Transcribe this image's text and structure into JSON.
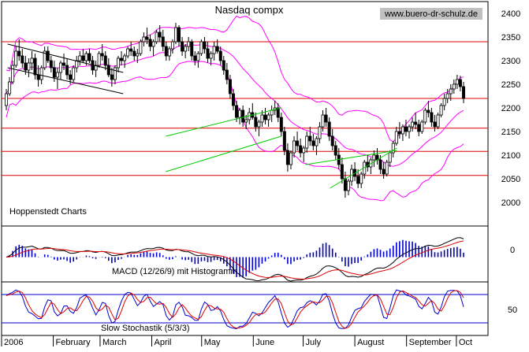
{
  "chart_data": {
    "type": "candlestick",
    "title": "Nasdaq compx",
    "source_label": "www.buero-dr-schulz.de",
    "vendor_label": "Hoppenstedt Charts",
    "colors": {
      "background": "#ffffff",
      "candle": "#000000",
      "bollinger": "#ff00ff",
      "support_lines": "#dd0000",
      "trend_channels": "#00cc00",
      "black_trendlines": "#000000",
      "macd_histogram": "#0000cc",
      "macd_line": "#000000",
      "signal_line": "#dd0000",
      "stoch_k": "#0000cc",
      "stoch_d": "#dd0000",
      "stoch_bands": "#0000cc",
      "source_bg": "#c0c0c0"
    },
    "price_panel": {
      "ylim": [
        1950,
        2425
      ],
      "yticks": [
        2000,
        2050,
        2100,
        2150,
        2200,
        2250,
        2300,
        2350,
        2400
      ],
      "support_resistance": [
        2340,
        2220,
        2157,
        2108,
        2057
      ],
      "bars": [
        [
          2205,
          2240,
          2195,
          2230
        ],
        [
          2230,
          2265,
          2225,
          2255
        ],
        [
          2255,
          2300,
          2250,
          2290
        ],
        [
          2290,
          2330,
          2285,
          2320
        ],
        [
          2320,
          2345,
          2300,
          2310
        ],
        [
          2310,
          2325,
          2285,
          2295
        ],
        [
          2295,
          2310,
          2270,
          2280
        ],
        [
          2280,
          2305,
          2265,
          2295
        ],
        [
          2295,
          2320,
          2280,
          2305
        ],
        [
          2305,
          2315,
          2260,
          2270
        ],
        [
          2270,
          2290,
          2245,
          2260
        ],
        [
          2260,
          2290,
          2250,
          2285
        ],
        [
          2285,
          2330,
          2280,
          2320
        ],
        [
          2320,
          2330,
          2295,
          2300
        ],
        [
          2300,
          2310,
          2275,
          2285
        ],
        [
          2285,
          2300,
          2255,
          2265
        ],
        [
          2265,
          2285,
          2240,
          2275
        ],
        [
          2275,
          2300,
          2260,
          2295
        ],
        [
          2295,
          2315,
          2280,
          2290
        ],
        [
          2290,
          2305,
          2260,
          2270
        ],
        [
          2270,
          2280,
          2250,
          2260
        ],
        [
          2260,
          2290,
          2255,
          2285
        ],
        [
          2285,
          2310,
          2275,
          2300
        ],
        [
          2300,
          2320,
          2290,
          2310
        ],
        [
          2310,
          2325,
          2295,
          2300
        ],
        [
          2300,
          2320,
          2290,
          2315
        ],
        [
          2315,
          2325,
          2295,
          2300
        ],
        [
          2300,
          2310,
          2270,
          2280
        ],
        [
          2280,
          2300,
          2265,
          2290
        ],
        [
          2290,
          2320,
          2285,
          2315
        ],
        [
          2315,
          2335,
          2300,
          2310
        ],
        [
          2310,
          2320,
          2280,
          2290
        ],
        [
          2290,
          2305,
          2265,
          2270
        ],
        [
          2270,
          2285,
          2245,
          2260
        ],
        [
          2260,
          2290,
          2250,
          2285
        ],
        [
          2285,
          2310,
          2275,
          2305
        ],
        [
          2305,
          2320,
          2290,
          2300
        ],
        [
          2300,
          2315,
          2285,
          2310
        ],
        [
          2310,
          2330,
          2305,
          2325
        ],
        [
          2325,
          2340,
          2310,
          2320
        ],
        [
          2320,
          2330,
          2300,
          2310
        ],
        [
          2310,
          2325,
          2295,
          2315
        ],
        [
          2315,
          2345,
          2310,
          2340
        ],
        [
          2340,
          2360,
          2330,
          2350
        ],
        [
          2350,
          2370,
          2335,
          2345
        ],
        [
          2345,
          2355,
          2320,
          2330
        ],
        [
          2330,
          2345,
          2310,
          2340
        ],
        [
          2340,
          2365,
          2335,
          2360
        ],
        [
          2360,
          2375,
          2340,
          2350
        ],
        [
          2350,
          2365,
          2320,
          2330
        ],
        [
          2330,
          2340,
          2300,
          2310
        ],
        [
          2310,
          2330,
          2300,
          2325
        ],
        [
          2325,
          2345,
          2315,
          2340
        ],
        [
          2340,
          2380,
          2335,
          2370
        ],
        [
          2370,
          2375,
          2330,
          2340
        ],
        [
          2340,
          2350,
          2310,
          2320
        ],
        [
          2320,
          2335,
          2305,
          2330
        ],
        [
          2330,
          2350,
          2320,
          2340
        ],
        [
          2340,
          2345,
          2300,
          2310
        ],
        [
          2310,
          2320,
          2290,
          2300
        ],
        [
          2300,
          2320,
          2285,
          2315
        ],
        [
          2315,
          2345,
          2310,
          2340
        ],
        [
          2340,
          2350,
          2315,
          2325
        ],
        [
          2325,
          2340,
          2295,
          2305
        ],
        [
          2305,
          2320,
          2290,
          2315
        ],
        [
          2315,
          2340,
          2300,
          2330
        ],
        [
          2330,
          2345,
          2315,
          2320
        ],
        [
          2320,
          2330,
          2290,
          2300
        ],
        [
          2300,
          2310,
          2270,
          2280
        ],
        [
          2280,
          2295,
          2250,
          2260
        ],
        [
          2260,
          2270,
          2220,
          2230
        ],
        [
          2230,
          2240,
          2195,
          2205
        ],
        [
          2205,
          2215,
          2170,
          2180
        ],
        [
          2180,
          2200,
          2165,
          2195
        ],
        [
          2195,
          2205,
          2160,
          2170
        ],
        [
          2170,
          2185,
          2155,
          2175
        ],
        [
          2175,
          2200,
          2165,
          2190
        ],
        [
          2190,
          2210,
          2175,
          2180
        ],
        [
          2180,
          2190,
          2150,
          2160
        ],
        [
          2160,
          2175,
          2140,
          2170
        ],
        [
          2170,
          2195,
          2160,
          2185
        ],
        [
          2185,
          2200,
          2165,
          2175
        ],
        [
          2175,
          2190,
          2160,
          2185
        ],
        [
          2185,
          2205,
          2170,
          2195
        ],
        [
          2195,
          2215,
          2185,
          2200
        ],
        [
          2200,
          2210,
          2170,
          2180
        ],
        [
          2180,
          2190,
          2140,
          2150
        ],
        [
          2150,
          2160,
          2100,
          2110
        ],
        [
          2110,
          2125,
          2065,
          2080
        ],
        [
          2080,
          2110,
          2070,
          2105
        ],
        [
          2105,
          2140,
          2095,
          2130
        ],
        [
          2130,
          2150,
          2110,
          2120
        ],
        [
          2120,
          2135,
          2095,
          2105
        ],
        [
          2105,
          2120,
          2085,
          2115
        ],
        [
          2115,
          2150,
          2105,
          2140
        ],
        [
          2140,
          2160,
          2120,
          2130
        ],
        [
          2130,
          2145,
          2110,
          2120
        ],
        [
          2120,
          2140,
          2100,
          2135
        ],
        [
          2135,
          2170,
          2125,
          2160
        ],
        [
          2160,
          2195,
          2150,
          2185
        ],
        [
          2185,
          2200,
          2160,
          2170
        ],
        [
          2170,
          2180,
          2130,
          2140
        ],
        [
          2140,
          2155,
          2110,
          2120
        ],
        [
          2120,
          2130,
          2090,
          2100
        ],
        [
          2100,
          2115,
          2070,
          2080
        ],
        [
          2080,
          2095,
          2040,
          2050
        ],
        [
          2050,
          2065,
          2010,
          2025
        ],
        [
          2025,
          2050,
          2015,
          2045
        ],
        [
          2045,
          2080,
          2035,
          2070
        ],
        [
          2070,
          2085,
          2045,
          2055
        ],
        [
          2055,
          2070,
          2030,
          2040
        ],
        [
          2040,
          2065,
          2030,
          2060
        ],
        [
          2060,
          2090,
          2050,
          2085
        ],
        [
          2085,
          2100,
          2065,
          2075
        ],
        [
          2075,
          2095,
          2060,
          2090
        ],
        [
          2090,
          2110,
          2075,
          2100
        ],
        [
          2100,
          2115,
          2080,
          2090
        ],
        [
          2090,
          2100,
          2060,
          2070
        ],
        [
          2070,
          2085,
          2050,
          2060
        ],
        [
          2060,
          2090,
          2055,
          2085
        ],
        [
          2085,
          2110,
          2075,
          2105
        ],
        [
          2105,
          2130,
          2095,
          2125
        ],
        [
          2125,
          2160,
          2120,
          2150
        ],
        [
          2150,
          2170,
          2135,
          2145
        ],
        [
          2145,
          2165,
          2130,
          2160
        ],
        [
          2160,
          2175,
          2140,
          2150
        ],
        [
          2150,
          2165,
          2135,
          2160
        ],
        [
          2160,
          2180,
          2150,
          2170
        ],
        [
          2170,
          2190,
          2155,
          2165
        ],
        [
          2165,
          2175,
          2140,
          2150
        ],
        [
          2150,
          2175,
          2145,
          2170
        ],
        [
          2170,
          2200,
          2165,
          2195
        ],
        [
          2195,
          2215,
          2180,
          2190
        ],
        [
          2190,
          2200,
          2160,
          2170
        ],
        [
          2170,
          2185,
          2150,
          2160
        ],
        [
          2160,
          2190,
          2155,
          2185
        ],
        [
          2185,
          2210,
          2180,
          2205
        ],
        [
          2205,
          2230,
          2195,
          2220
        ],
        [
          2220,
          2240,
          2210,
          2230
        ],
        [
          2230,
          2250,
          2215,
          2240
        ],
        [
          2240,
          2260,
          2230,
          2250
        ],
        [
          2250,
          2270,
          2240,
          2260
        ],
        [
          2260,
          2268,
          2235,
          2245
        ],
        [
          2245,
          2255,
          2210,
          2220
        ]
      ],
      "trend_channels": [
        [
          [
            2006.27,
            2140
          ],
          [
            2006.46,
            2200
          ]
        ],
        [
          [
            2006.27,
            2065
          ],
          [
            2006.46,
            2140
          ]
        ],
        [
          [
            2006.54,
            2030
          ],
          [
            2006.65,
            2115
          ]
        ],
        [
          [
            2006.5,
            2080
          ],
          [
            2006.65,
            2110
          ]
        ]
      ],
      "black_trendlines": [
        [
          [
            2006.01,
            2335
          ],
          [
            2006.2,
            2275
          ]
        ],
        [
          [
            2006.01,
            2285
          ],
          [
            2006.2,
            2230
          ]
        ]
      ]
    },
    "macd_panel": {
      "label": "MACD (12/26/9) mit Histogramm",
      "ytick": "0"
    },
    "stoch_panel": {
      "label": "Slow Stochastik (5/3/3)",
      "ytick": "50",
      "bands": [
        80,
        20
      ]
    },
    "x_axis": {
      "start": 2006.0,
      "end": 2006.8,
      "labels": [
        {
          "text": "2006",
          "x": 2006.0
        },
        {
          "text": "February",
          "x": 2006.085
        },
        {
          "text": "March",
          "x": 2006.162
        },
        {
          "text": "April",
          "x": 2006.247
        },
        {
          "text": "May",
          "x": 2006.329
        },
        {
          "text": "June",
          "x": 2006.414
        },
        {
          "text": "July",
          "x": 2006.496
        },
        {
          "text": "August",
          "x": 2006.581
        },
        {
          "text": "September",
          "x": 2006.666
        },
        {
          "text": "Oct",
          "x": 2006.748
        }
      ]
    }
  }
}
